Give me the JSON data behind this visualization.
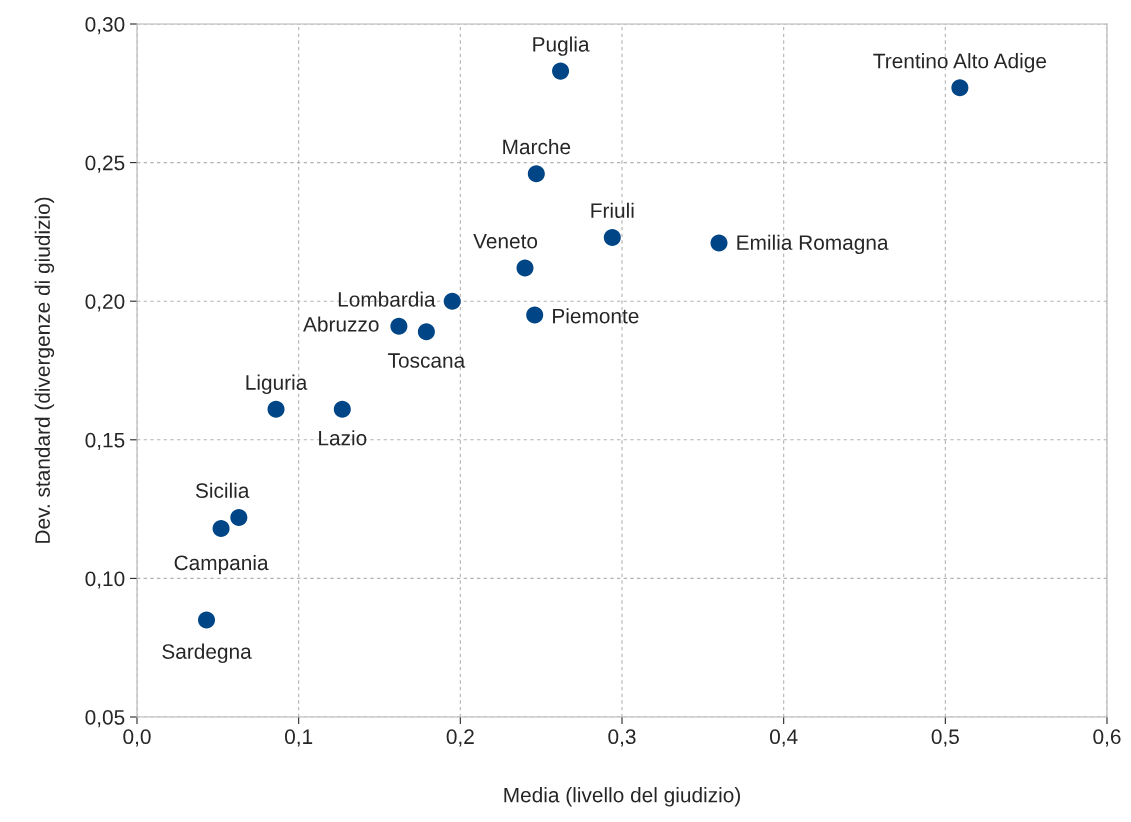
{
  "chart_data": {
    "type": "scatter",
    "xlabel": "Media (livello del giudizio)",
    "ylabel": "Dev. standard (divergenze di giudizio)",
    "x": [
      0.262,
      0.509,
      0.247,
      0.294,
      0.36,
      0.24,
      0.195,
      0.246,
      0.162,
      0.179,
      0.086,
      0.127,
      0.063,
      0.052,
      0.043
    ],
    "values": [
      0.283,
      0.277,
      0.246,
      0.223,
      0.221,
      0.212,
      0.2,
      0.195,
      0.191,
      0.189,
      0.161,
      0.161,
      0.122,
      0.118,
      0.085
    ],
    "value_labels": [
      "Puglia",
      "Trentino Alto Adige",
      "Marche",
      "Friuli",
      "Emilia Romagna",
      "Veneto",
      "Lombardia",
      "Piemonte",
      "Abruzzo",
      "Toscana",
      "Liguria",
      "Lazio",
      "Sicilia",
      "Campania",
      "Sardegna"
    ],
    "color": "#004586",
    "marker": "circle",
    "grid": true,
    "xlim": [
      0,
      0.6
    ],
    "xticks": [
      {
        "value": 0,
        "label": "0,0"
      },
      {
        "value": 0.1,
        "label": "0,1"
      },
      {
        "value": 0.2,
        "label": "0,2"
      },
      {
        "value": 0.3,
        "label": "0,3"
      },
      {
        "value": 0.4,
        "label": "0,4"
      },
      {
        "value": 0.5,
        "label": "0,5"
      },
      {
        "value": 0.6,
        "label": "0,6"
      }
    ],
    "ylim": [
      0.05,
      0.3
    ],
    "yticks": [
      {
        "value": 0.05,
        "label": "0,05"
      },
      {
        "value": 0.1,
        "label": "0,10"
      },
      {
        "value": 0.15,
        "label": "0,15"
      },
      {
        "value": 0.2,
        "label": "0,20"
      },
      {
        "value": 0.25,
        "label": "0,25"
      },
      {
        "value": 0.3,
        "label": "0,30"
      }
    ]
  }
}
